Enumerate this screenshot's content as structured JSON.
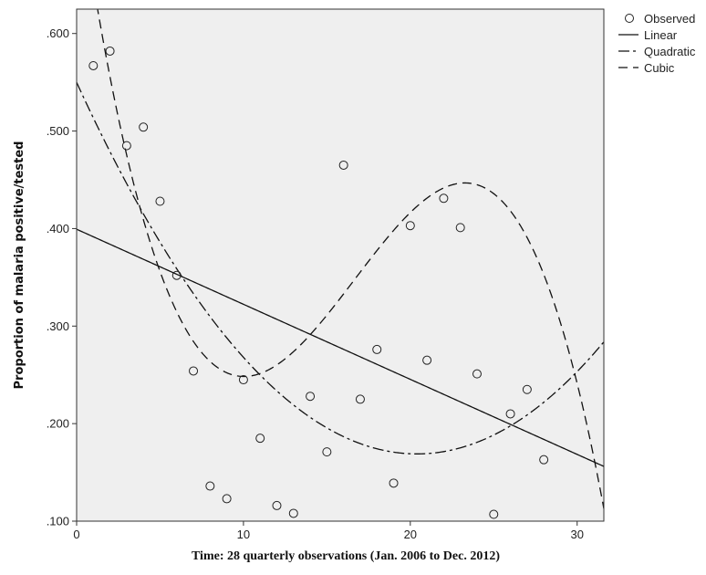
{
  "chart_data": {
    "type": "scatter",
    "title": "",
    "xlabel": "Time: 28 quarterly observations (Jan. 2006 to Dec. 2012)",
    "ylabel": "Proportion of malaria positive/tested",
    "xlim": [
      0,
      31.6
    ],
    "ylim": [
      0.1,
      0.625
    ],
    "xticks": [
      0,
      10,
      20,
      30
    ],
    "xtick_labels": [
      "0",
      "10",
      "20",
      "30"
    ],
    "yticks": [
      0.1,
      0.2,
      0.3,
      0.4,
      0.5,
      0.6
    ],
    "ytick_labels": [
      ".100",
      ".200",
      ".300",
      ".400",
      ".500",
      ".600"
    ],
    "grid": false,
    "legend_position": "top-right outside",
    "background": "#efefef",
    "observed": {
      "name": "Observed",
      "x": [
        1,
        2,
        3,
        4,
        5,
        6,
        7,
        8,
        9,
        10,
        11,
        12,
        13,
        14,
        15,
        16,
        17,
        18,
        19,
        20,
        21,
        22,
        23,
        24,
        25,
        26,
        27,
        28
      ],
      "y": [
        0.567,
        0.582,
        0.485,
        0.504,
        0.428,
        0.352,
        0.254,
        0.136,
        0.123,
        0.245,
        0.185,
        0.116,
        0.108,
        0.228,
        0.171,
        0.465,
        0.225,
        0.276,
        0.139,
        0.403,
        0.265,
        0.431,
        0.401,
        0.251,
        0.107,
        0.21,
        0.235,
        0.163
      ]
    },
    "fits": [
      {
        "name": "Linear",
        "style": "solid",
        "coef": [
          0.3993,
          -0.007695
        ]
      },
      {
        "name": "Quadratic",
        "style": "dash-dot",
        "coef": [
          0.5499,
          -0.03735,
          0.0009155
        ]
      },
      {
        "name": "Cubic",
        "style": "dashed",
        "coef": [
          0.7622,
          -0.11965,
          0.008535,
          -0.00017085
        ]
      }
    ]
  }
}
